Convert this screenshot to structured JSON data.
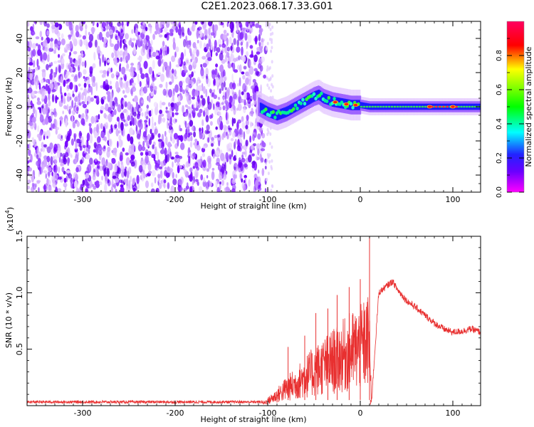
{
  "title": "C2E1.2023.068.17.33.G01",
  "chart_data": [
    {
      "type": "heatmap",
      "xlabel": "Height of straight line (km)",
      "ylabel": "Frequency (Hz)",
      "xlim": [
        -360,
        130
      ],
      "ylim": [
        -50,
        50
      ],
      "x_ticks": [
        -300,
        -200,
        -100,
        0,
        100
      ],
      "y_ticks": [
        -40,
        -20,
        0,
        20,
        40
      ],
      "colorbar": {
        "label": "Normalized spectral amplitude",
        "range": [
          0,
          1
        ],
        "ticks": [
          "0.0",
          "0.2",
          "0.4",
          "0.6",
          "0.8"
        ],
        "colormap": [
          "#ff00ff",
          "#2222ff",
          "#00ffff",
          "#00ff00",
          "#ffff00",
          "#ff0000",
          "#ff0080"
        ]
      },
      "noise_region_x": [
        -360,
        -102
      ],
      "ridge": {
        "x": [
          -110,
          -100,
          -90,
          -80,
          -70,
          -60,
          -50,
          -45,
          -40,
          -30,
          -20,
          -10,
          0,
          10,
          30,
          60,
          90,
          130
        ],
        "y": [
          0,
          -3,
          -5,
          -3,
          0,
          3,
          6,
          7,
          5,
          3,
          2,
          1,
          1,
          0,
          0,
          0,
          0,
          0
        ]
      },
      "peaks_x": [
        -27,
        -15,
        -5,
        75,
        100
      ]
    },
    {
      "type": "line",
      "xlabel": "Height of straight line (km)",
      "ylabel": "SNR (10 * v/v)",
      "multiplier": "(x10",
      "multiplier_exp": "4",
      "multiplier_close": ")",
      "xlim": [
        -360,
        130
      ],
      "ylim": [
        0,
        1.5
      ],
      "x_ticks": [
        -300,
        -200,
        -100,
        0,
        100
      ],
      "y_ticks": [
        "0.5",
        "1.0",
        "1.5"
      ],
      "series_color": "#e83030",
      "envelope": {
        "x": [
          -360,
          -105,
          -100,
          -90,
          -80,
          -70,
          -60,
          -50,
          -40,
          -30,
          -20,
          -10,
          0,
          5,
          10,
          12,
          20,
          30,
          35,
          40,
          50,
          60,
          70,
          80,
          90,
          100,
          110,
          120,
          130
        ],
        "y": [
          0.03,
          0.03,
          0.07,
          0.15,
          0.25,
          0.32,
          0.42,
          0.5,
          0.58,
          0.65,
          0.72,
          0.8,
          0.85,
          0.9,
          0.97,
          0.02,
          1.0,
          1.07,
          1.1,
          1.03,
          0.93,
          0.87,
          0.8,
          0.73,
          0.68,
          0.65,
          0.66,
          0.68,
          0.65
        ]
      },
      "spikes": [
        {
          "x": -78,
          "y": 0.52
        },
        {
          "x": -60,
          "y": 0.62
        },
        {
          "x": -48,
          "y": 0.82
        },
        {
          "x": -35,
          "y": 0.86
        },
        {
          "x": -25,
          "y": 0.98
        },
        {
          "x": -12,
          "y": 1.05
        },
        {
          "x": 0,
          "y": 1.12
        },
        {
          "x": 10,
          "y": 1.5
        },
        {
          "x": 11,
          "y": 0.01
        }
      ]
    }
  ]
}
